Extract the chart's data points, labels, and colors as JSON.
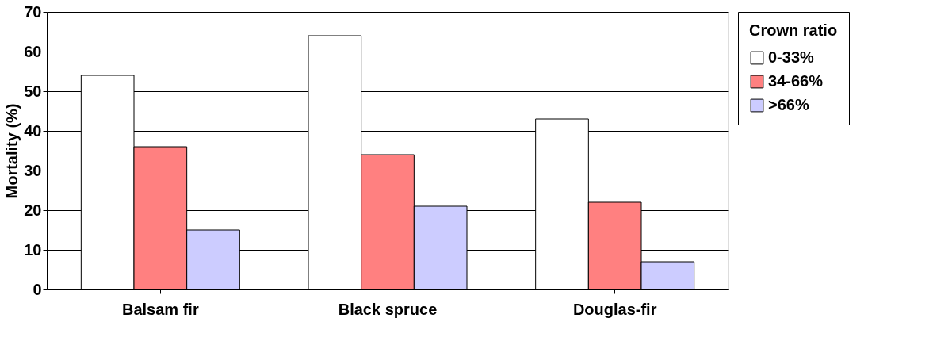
{
  "chart_data": {
    "type": "bar",
    "ylabel": "Mortality (%)",
    "legend_title": "Crown ratio",
    "categories": [
      "Balsam fir",
      "Black spruce",
      "Douglas-fir"
    ],
    "series": [
      {
        "name": "0-33%",
        "color": "#ffffff",
        "values": [
          54,
          64,
          43
        ]
      },
      {
        "name": "34-66%",
        "color": "#ff8080",
        "values": [
          36,
          34,
          22
        ]
      },
      {
        "name": ">66%",
        "color": "#ccccff",
        "values": [
          15,
          21,
          7
        ]
      }
    ],
    "ylim": [
      0,
      70
    ],
    "yticks": [
      0,
      10,
      20,
      30,
      40,
      50,
      60,
      70
    ],
    "grid": "y",
    "legend": "right"
  }
}
